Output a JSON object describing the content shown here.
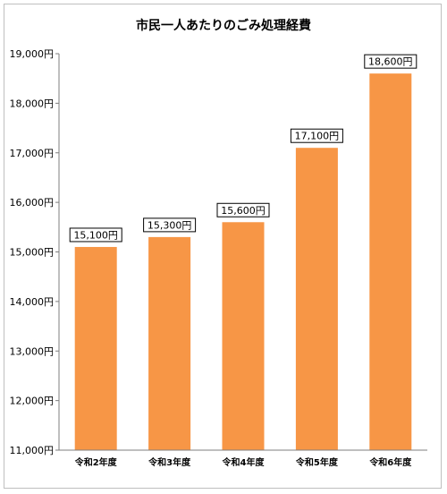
{
  "chart_data": {
    "type": "bar",
    "title": "市民一人あたりのごみ処理経費",
    "categories": [
      "令和2年度",
      "令和3年度",
      "令和4年度",
      "令和5年度",
      "令和6年度"
    ],
    "values": [
      15100,
      15300,
      15600,
      17100,
      18600
    ],
    "data_labels": [
      "15,100円",
      "15,300円",
      "15,600円",
      "17,100円",
      "18,600円"
    ],
    "yticks": [
      "11,000円",
      "12,000円",
      "13,000円",
      "14,000円",
      "15,000円",
      "16,000円",
      "17,000円",
      "18,000円",
      "19,000円"
    ],
    "ylim": [
      11000,
      19000
    ],
    "grid": false,
    "bar_color": "#F79646",
    "xlabel": "",
    "ylabel": ""
  }
}
